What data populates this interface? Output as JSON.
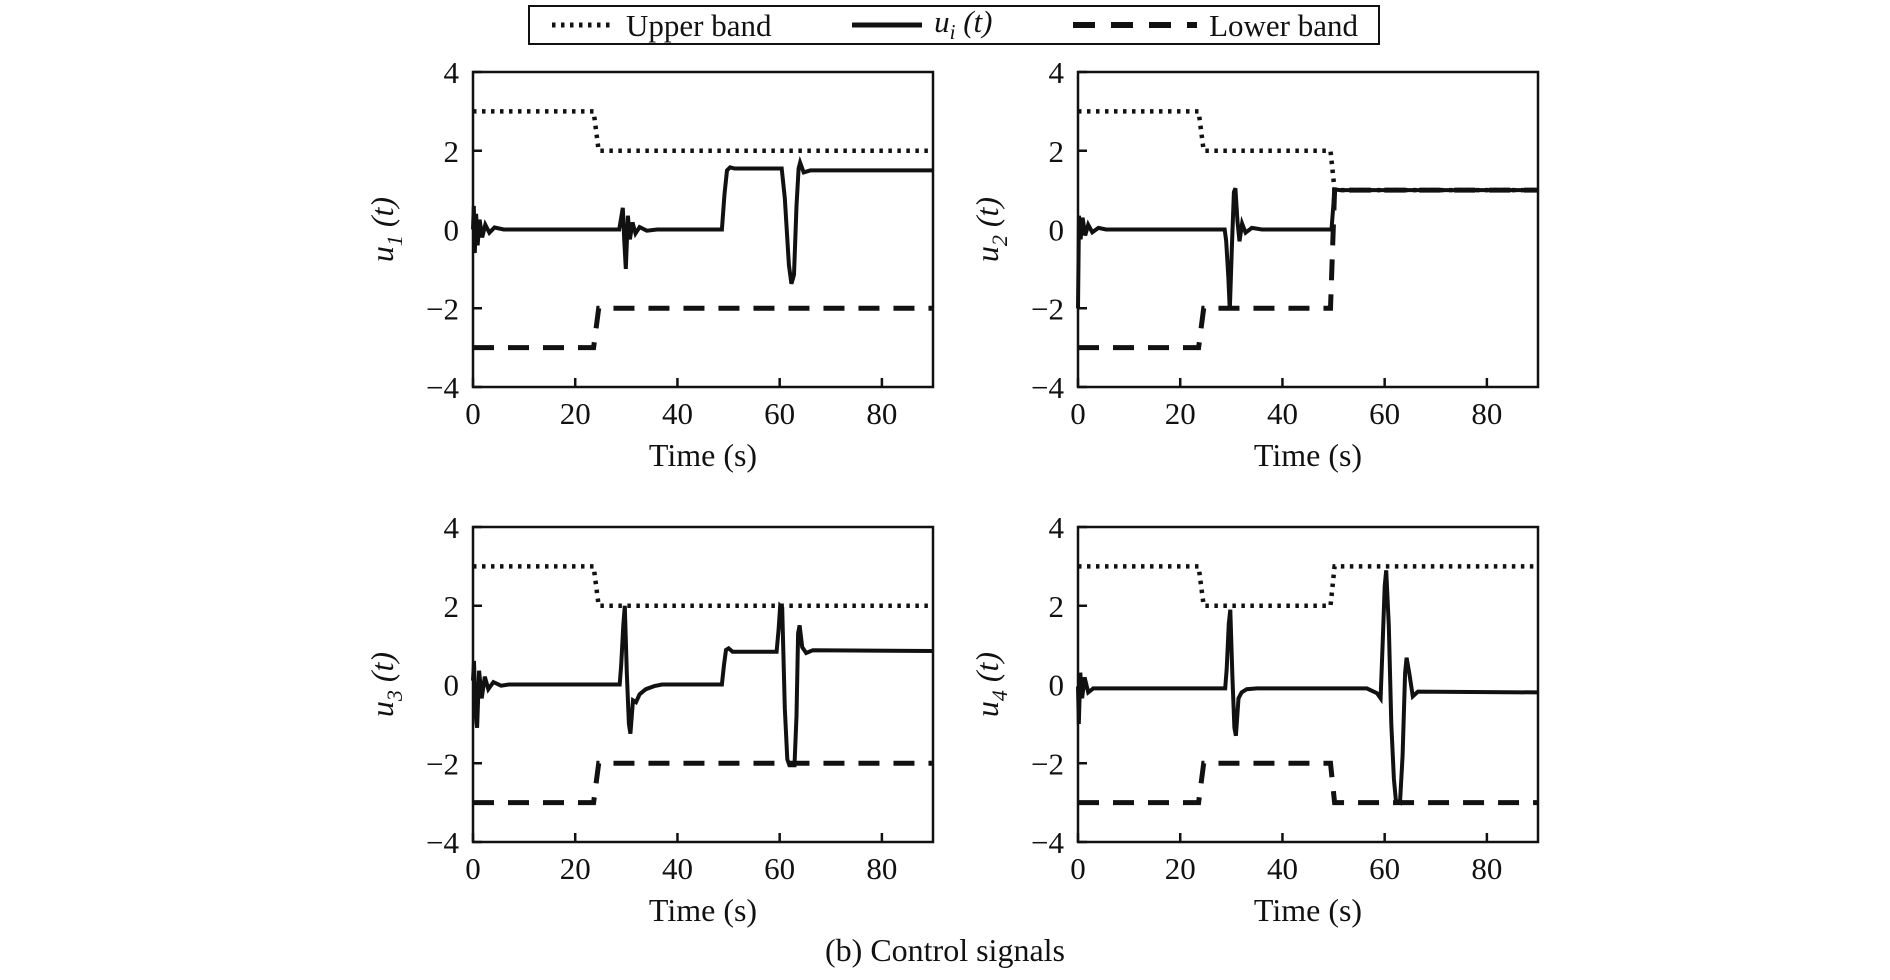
{
  "figure": {
    "caption": "(b) Control signals",
    "background": "#ffffff",
    "line_color": "#111111"
  },
  "legend": {
    "items": [
      {
        "label": "Upper band",
        "style": "dotted"
      },
      {
        "parts": {
          "main": "u",
          "sub": "i",
          "rest": " (t)"
        },
        "style": "solid"
      },
      {
        "label": "Lower band",
        "style": "dashed"
      }
    ]
  },
  "chart_data": [
    {
      "id": "u1",
      "type": "line",
      "ylabel": {
        "main": "u",
        "sub": "1",
        "rest": " (t)"
      },
      "xlabel": "Time (s)",
      "xlim": [
        0,
        90
      ],
      "ylim": [
        -4,
        4
      ],
      "xticks": [
        0,
        20,
        40,
        60,
        80
      ],
      "yticks": [
        4,
        2,
        0,
        -2,
        -4
      ],
      "grid": false,
      "series": [
        {
          "name": "Upper band",
          "style": "dotted",
          "points": [
            [
              0,
              3
            ],
            [
              23.6,
              3
            ],
            [
              24.6,
              2
            ],
            [
              90,
              2
            ]
          ]
        },
        {
          "name": "Lower band",
          "style": "dashed",
          "points": [
            [
              0,
              -3
            ],
            [
              23.6,
              -3
            ],
            [
              24.6,
              -2
            ],
            [
              90,
              -2
            ]
          ]
        },
        {
          "name": "u1(t)",
          "style": "solid",
          "points": [
            [
              0,
              0
            ],
            [
              0.15,
              0.6
            ],
            [
              0.35,
              -0.6
            ],
            [
              0.6,
              0.4
            ],
            [
              0.9,
              -0.4
            ],
            [
              1.3,
              0.25
            ],
            [
              1.8,
              -0.2
            ],
            [
              2.4,
              0.12
            ],
            [
              3.2,
              -0.08
            ],
            [
              4.2,
              0.05
            ],
            [
              6,
              0
            ],
            [
              28.6,
              0
            ],
            [
              29,
              0.3
            ],
            [
              29.3,
              0.55
            ],
            [
              29.6,
              -0.3
            ],
            [
              29.9,
              -1
            ],
            [
              30.3,
              0.35
            ],
            [
              30.7,
              -0.25
            ],
            [
              31.2,
              0.18
            ],
            [
              31.8,
              -0.1
            ],
            [
              32.6,
              0.06
            ],
            [
              34,
              -0.03
            ],
            [
              36,
              0
            ],
            [
              48.7,
              0
            ],
            [
              49.2,
              0.9
            ],
            [
              49.7,
              1.5
            ],
            [
              50.3,
              1.58
            ],
            [
              51.2,
              1.55
            ],
            [
              60.4,
              1.55
            ],
            [
              61,
              0.8
            ],
            [
              61.8,
              -0.9
            ],
            [
              62.3,
              -1.38
            ],
            [
              62.8,
              -1.15
            ],
            [
              63.3,
              0.6
            ],
            [
              63.7,
              1.55
            ],
            [
              64,
              1.7
            ],
            [
              64.7,
              1.45
            ],
            [
              66,
              1.5
            ],
            [
              90,
              1.5
            ]
          ]
        }
      ]
    },
    {
      "id": "u2",
      "type": "line",
      "ylabel": {
        "main": "u",
        "sub": "2",
        "rest": " (t)"
      },
      "xlabel": "Time (s)",
      "xlim": [
        0,
        90
      ],
      "ylim": [
        -4,
        4
      ],
      "xticks": [
        0,
        20,
        40,
        60,
        80
      ],
      "yticks": [
        4,
        2,
        0,
        -2,
        -4
      ],
      "grid": false,
      "series": [
        {
          "name": "Upper band",
          "style": "dotted",
          "points": [
            [
              0,
              3
            ],
            [
              23.6,
              3
            ],
            [
              24.6,
              2
            ],
            [
              49.4,
              2
            ],
            [
              50.2,
              1
            ],
            [
              90,
              1
            ]
          ]
        },
        {
          "name": "Lower band",
          "style": "dashed",
          "points": [
            [
              0,
              -3
            ],
            [
              23.6,
              -3
            ],
            [
              24.6,
              -2
            ],
            [
              49.4,
              -2
            ],
            [
              50.2,
              1
            ],
            [
              90,
              1
            ]
          ]
        },
        {
          "name": "u2(t)",
          "style": "solid",
          "points": [
            [
              0,
              -2
            ],
            [
              0.2,
              0.35
            ],
            [
              0.5,
              -0.25
            ],
            [
              0.9,
              0.3
            ],
            [
              1.4,
              -0.15
            ],
            [
              2,
              0.12
            ],
            [
              2.8,
              -0.07
            ],
            [
              4,
              0.04
            ],
            [
              5.5,
              0
            ],
            [
              28.7,
              0
            ],
            [
              29,
              -0.3
            ],
            [
              29.4,
              -1.2
            ],
            [
              29.7,
              -2.05
            ],
            [
              30.1,
              -0.5
            ],
            [
              30.5,
              0.95
            ],
            [
              30.8,
              1.05
            ],
            [
              31.2,
              0.2
            ],
            [
              31.6,
              -0.3
            ],
            [
              32.1,
              0.15
            ],
            [
              32.8,
              -0.08
            ],
            [
              34,
              0.04
            ],
            [
              36,
              0
            ],
            [
              49.6,
              0
            ],
            [
              49.9,
              0.5
            ],
            [
              50.2,
              1.02
            ],
            [
              51.2,
              1
            ],
            [
              90,
              1
            ]
          ]
        }
      ]
    },
    {
      "id": "u3",
      "type": "line",
      "ylabel": {
        "main": "u",
        "sub": "3",
        "rest": " (t)"
      },
      "xlabel": "Time (s)",
      "xlim": [
        0,
        90
      ],
      "ylim": [
        -4,
        4
      ],
      "xticks": [
        0,
        20,
        40,
        60,
        80
      ],
      "yticks": [
        4,
        2,
        0,
        -2,
        -4
      ],
      "grid": false,
      "series": [
        {
          "name": "Upper band",
          "style": "dotted",
          "points": [
            [
              0,
              3
            ],
            [
              23.6,
              3
            ],
            [
              24.6,
              2
            ],
            [
              90,
              2
            ]
          ]
        },
        {
          "name": "Lower band",
          "style": "dashed",
          "points": [
            [
              0,
              -3
            ],
            [
              23.6,
              -3
            ],
            [
              24.6,
              -2
            ],
            [
              90,
              -2
            ]
          ]
        },
        {
          "name": "u3(t)",
          "style": "solid",
          "points": [
            [
              0,
              0.1
            ],
            [
              0.2,
              0.6
            ],
            [
              0.5,
              -0.75
            ],
            [
              0.8,
              -1.1
            ],
            [
              1.2,
              0.35
            ],
            [
              1.7,
              -0.35
            ],
            [
              2.3,
              0.2
            ],
            [
              3,
              -0.12
            ],
            [
              4,
              0.06
            ],
            [
              5.5,
              -0.03
            ],
            [
              7,
              0
            ],
            [
              28.7,
              0
            ],
            [
              29,
              0.5
            ],
            [
              29.4,
              1.5
            ],
            [
              29.7,
              2
            ],
            [
              30.1,
              0.3
            ],
            [
              30.5,
              -1
            ],
            [
              30.8,
              -1.25
            ],
            [
              31.3,
              -0.4
            ],
            [
              31.9,
              -0.45
            ],
            [
              32.6,
              -0.25
            ],
            [
              33.8,
              -0.12
            ],
            [
              35.5,
              -0.04
            ],
            [
              37,
              0
            ],
            [
              48.7,
              0
            ],
            [
              49.1,
              0.5
            ],
            [
              49.5,
              0.88
            ],
            [
              50,
              0.92
            ],
            [
              50.8,
              0.83
            ],
            [
              59.4,
              0.83
            ],
            [
              59.8,
              1.4
            ],
            [
              60.1,
              2
            ],
            [
              60.5,
              1.95
            ],
            [
              61,
              -0.6
            ],
            [
              61.5,
              -1.9
            ],
            [
              61.9,
              -2.05
            ],
            [
              62.9,
              -2.05
            ],
            [
              63.3,
              -0.8
            ],
            [
              63.6,
              1.3
            ],
            [
              63.9,
              1.5
            ],
            [
              64.4,
              0.95
            ],
            [
              65.2,
              0.8
            ],
            [
              66.5,
              0.87
            ],
            [
              90,
              0.85
            ]
          ]
        }
      ]
    },
    {
      "id": "u4",
      "type": "line",
      "ylabel": {
        "main": "u",
        "sub": "4",
        "rest": " (t)"
      },
      "xlabel": "Time (s)",
      "xlim": [
        0,
        90
      ],
      "ylim": [
        -4,
        4
      ],
      "xticks": [
        0,
        20,
        40,
        60,
        80
      ],
      "yticks": [
        4,
        2,
        0,
        -2,
        -4
      ],
      "grid": false,
      "series": [
        {
          "name": "Upper band",
          "style": "dotted",
          "points": [
            [
              0,
              3
            ],
            [
              23.6,
              3
            ],
            [
              24.6,
              2
            ],
            [
              49.4,
              2
            ],
            [
              50.2,
              3
            ],
            [
              90,
              3
            ]
          ]
        },
        {
          "name": "Lower band",
          "style": "dashed",
          "points": [
            [
              0,
              -3
            ],
            [
              23.6,
              -3
            ],
            [
              24.6,
              -2
            ],
            [
              49.4,
              -2
            ],
            [
              50.2,
              -3
            ],
            [
              90,
              -3
            ]
          ]
        },
        {
          "name": "u4(t)",
          "style": "solid",
          "points": [
            [
              0,
              -0.05
            ],
            [
              0.15,
              -1
            ],
            [
              0.45,
              0.3
            ],
            [
              0.8,
              -0.35
            ],
            [
              1.3,
              0.18
            ],
            [
              2,
              -0.2
            ],
            [
              3,
              -0.1
            ],
            [
              28.8,
              -0.1
            ],
            [
              29.1,
              0.4
            ],
            [
              29.5,
              1.55
            ],
            [
              29.8,
              1.9
            ],
            [
              30.2,
              0.2
            ],
            [
              30.6,
              -1.1
            ],
            [
              30.9,
              -1.3
            ],
            [
              31.4,
              -0.35
            ],
            [
              32,
              -0.2
            ],
            [
              33,
              -0.12
            ],
            [
              35,
              -0.1
            ],
            [
              56.5,
              -0.1
            ],
            [
              58.5,
              -0.22
            ],
            [
              59.2,
              -0.35
            ],
            [
              59.6,
              1
            ],
            [
              60,
              2.5
            ],
            [
              60.3,
              2.9
            ],
            [
              60.8,
              1.5
            ],
            [
              61.3,
              -1
            ],
            [
              61.8,
              -2.4
            ],
            [
              62.2,
              -2.95
            ],
            [
              63,
              -3
            ],
            [
              63.5,
              -1.8
            ],
            [
              64,
              0.3
            ],
            [
              64.3,
              0.68
            ],
            [
              64.8,
              0.3
            ],
            [
              65.5,
              -0.3
            ],
            [
              66.5,
              -0.18
            ],
            [
              90,
              -0.2
            ]
          ]
        }
      ]
    }
  ]
}
